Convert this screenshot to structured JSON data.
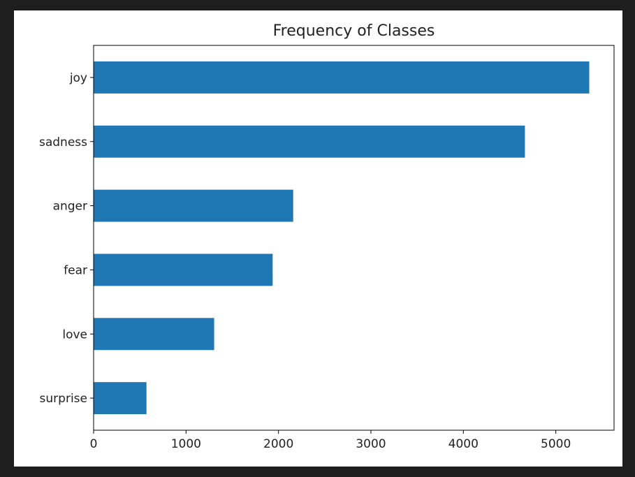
{
  "chart_data": {
    "type": "bar",
    "orientation": "horizontal",
    "title": "Frequency of Classes",
    "xlabel": "",
    "ylabel": "",
    "categories": [
      "surprise",
      "love",
      "fear",
      "anger",
      "sadness",
      "joy"
    ],
    "values": [
      572,
      1304,
      1937,
      2159,
      4666,
      5362
    ],
    "xlim": [
      0,
      5630
    ],
    "xticks": [
      0,
      1000,
      2000,
      3000,
      4000,
      5000
    ],
    "bar_color": "#1f77b4",
    "grid": false
  }
}
